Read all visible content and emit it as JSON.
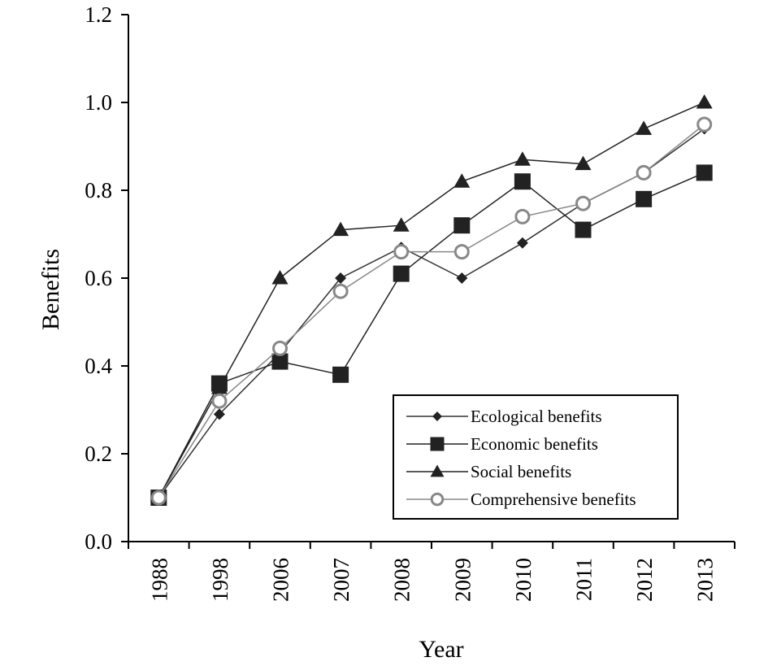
{
  "chart_data": {
    "type": "line",
    "xlabel": "Year",
    "ylabel": "Benefits",
    "ylim": [
      0,
      1.2
    ],
    "yticks": [
      "0.0",
      "0.2",
      "0.4",
      "0.6",
      "0.8",
      "1.0",
      "1.2"
    ],
    "categories": [
      "1988",
      "1998",
      "2006",
      "2007",
      "2008",
      "2009",
      "2010",
      "2011",
      "2012",
      "2013"
    ],
    "grid": false,
    "legend_position": "bottom-right",
    "series": [
      {
        "name": "Ecological benefits",
        "marker": "diamond",
        "color": "#333333",
        "values": [
          0.1,
          0.29,
          0.43,
          0.6,
          0.67,
          0.6,
          0.68,
          0.77,
          0.84,
          0.94
        ]
      },
      {
        "name": "Economic benefits",
        "marker": "square",
        "color": "#222222",
        "values": [
          0.1,
          0.36,
          0.41,
          0.38,
          0.61,
          0.72,
          0.82,
          0.71,
          0.78,
          0.84
        ]
      },
      {
        "name": "Social benefits",
        "marker": "triangle",
        "color": "#222222",
        "values": [
          0.1,
          0.35,
          0.6,
          0.71,
          0.72,
          0.82,
          0.87,
          0.86,
          0.94,
          1.0
        ]
      },
      {
        "name": "Comprehensive benefits",
        "marker": "circle",
        "color": "#888888",
        "values": [
          0.1,
          0.32,
          0.44,
          0.57,
          0.66,
          0.66,
          0.74,
          0.77,
          0.84,
          0.95
        ]
      }
    ]
  }
}
